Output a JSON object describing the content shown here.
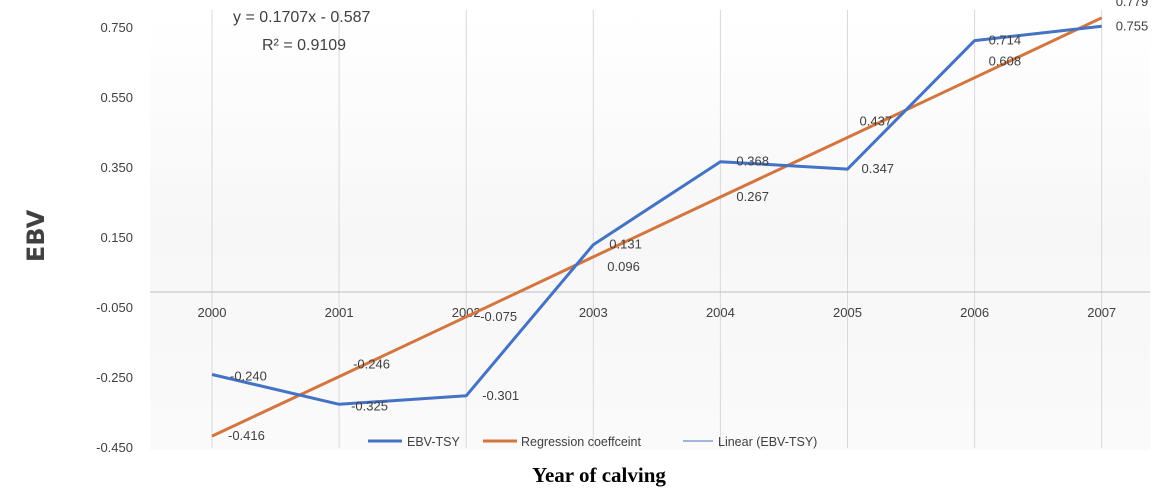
{
  "chart_data": {
    "type": "line",
    "categories": [
      "2000",
      "2001",
      "2002",
      "2003",
      "2004",
      "2005",
      "2006",
      "2007"
    ],
    "series": [
      {
        "name": "EBV-TSY",
        "color": "#4472c4",
        "values": [
          -0.24,
          -0.325,
          -0.301,
          0.131,
          0.368,
          0.347,
          0.714,
          0.755
        ],
        "labels": [
          "-0.240",
          "-0.325",
          "-0.301",
          "0.131",
          "0.368",
          "0.347",
          "0.714",
          "0.755"
        ]
      },
      {
        "name": "Regression coeffceint",
        "color": "#d4753f",
        "values": [
          -0.416,
          -0.246,
          -0.075,
          0.096,
          0.267,
          0.437,
          0.608,
          0.779
        ],
        "labels": [
          "-0.416",
          "-0.246",
          "-0.075",
          "0.096",
          "0.267",
          "0.437",
          "0.608",
          "0.779"
        ]
      },
      {
        "name": "Linear (EBV-TSY)",
        "color": "#4472c4",
        "type": "trendline"
      }
    ],
    "y_ticks": [
      "0.750",
      "0.550",
      "0.350",
      "0.150",
      "-0.050",
      "-0.250",
      "-0.450"
    ],
    "ylim": [
      -0.45,
      0.75
    ],
    "ylabel": "EBV",
    "xlabel": "Year of calving",
    "trendline_equation": "y = 0.1707x - 0.587",
    "trendline_r2": "R² = 0.9109",
    "legend_position": "bottom",
    "grid": "vertical"
  }
}
